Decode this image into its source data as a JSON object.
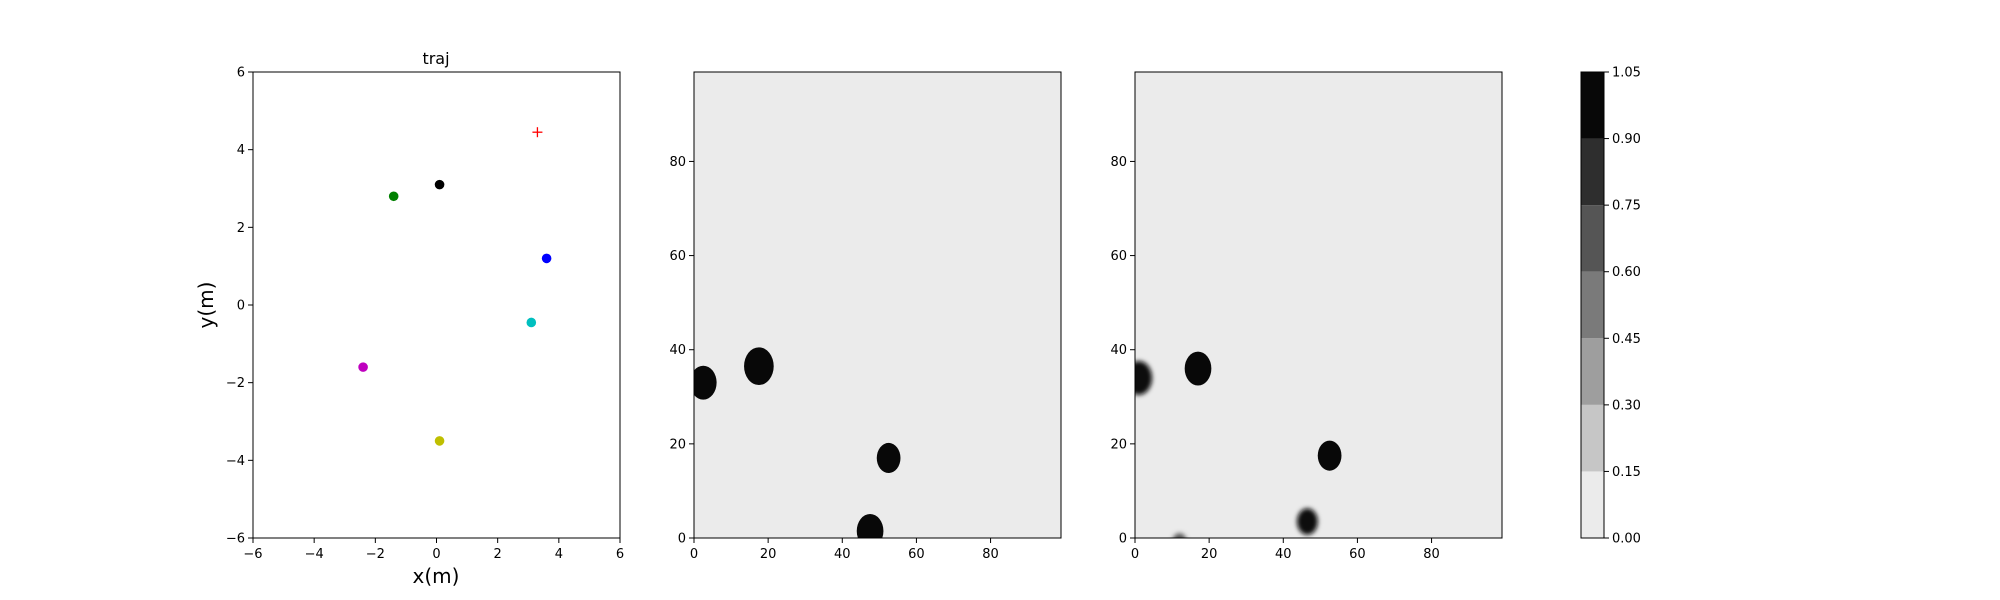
{
  "chart_data": [
    {
      "type": "scatter",
      "title": "traj",
      "xlabel": "x(m)",
      "ylabel": "y(m)",
      "xlim": [
        -6,
        6
      ],
      "ylim": [
        -6,
        6
      ],
      "xticks": [
        "−6",
        "−4",
        "−2",
        "0",
        "2",
        "4",
        "6"
      ],
      "yticks": [
        "−6",
        "−4",
        "−2",
        "0",
        "2",
        "4",
        "6"
      ],
      "grid": false,
      "points": [
        {
          "x": 0.1,
          "y": 3.1,
          "color": "#000000",
          "marker": "circle"
        },
        {
          "x": -1.4,
          "y": 2.8,
          "color": "#008000",
          "marker": "circle"
        },
        {
          "x": 3.6,
          "y": 1.2,
          "color": "#0000ff",
          "marker": "circle"
        },
        {
          "x": 3.1,
          "y": -0.45,
          "color": "#00bfbf",
          "marker": "circle"
        },
        {
          "x": -2.4,
          "y": -1.6,
          "color": "#bf00bf",
          "marker": "circle"
        },
        {
          "x": 0.1,
          "y": -3.5,
          "color": "#bfbf00",
          "marker": "circle"
        },
        {
          "x": 3.3,
          "y": 4.45,
          "color": "#ff0000",
          "marker": "plus"
        }
      ]
    },
    {
      "type": "heatmap",
      "title": "",
      "xlim": [
        0,
        99
      ],
      "ylim": [
        0,
        99
      ],
      "xticks": [
        "0",
        "20",
        "40",
        "60",
        "80"
      ],
      "yticks": [
        "0",
        "20",
        "40",
        "60",
        "80"
      ],
      "background_value": 0.05,
      "blobs": [
        {
          "x": 2.5,
          "y": 33,
          "r": 3.6,
          "value": 1.0,
          "soft": false
        },
        {
          "x": 17.5,
          "y": 36.5,
          "r": 4.0,
          "value": 1.0,
          "soft": false
        },
        {
          "x": 52.5,
          "y": 17,
          "r": 3.2,
          "value": 1.0,
          "soft": false
        },
        {
          "x": 47.5,
          "y": 1.5,
          "r": 3.6,
          "value": 1.0,
          "soft": false
        }
      ]
    },
    {
      "type": "heatmap",
      "title": "",
      "xlim": [
        0,
        99
      ],
      "ylim": [
        0,
        99
      ],
      "xticks": [
        "0",
        "20",
        "40",
        "60",
        "80"
      ],
      "yticks": [
        "0",
        "20",
        "40",
        "60",
        "80"
      ],
      "background_value": 0.05,
      "blobs": [
        {
          "x": 1.0,
          "y": 34,
          "r": 3.6,
          "value": 1.0,
          "soft": true
        },
        {
          "x": 17.0,
          "y": 36,
          "r": 3.6,
          "value": 1.0,
          "soft": false
        },
        {
          "x": 52.5,
          "y": 17.5,
          "r": 3.2,
          "value": 1.0,
          "soft": false
        },
        {
          "x": 46.5,
          "y": 3.5,
          "r": 2.8,
          "value": 1.0,
          "soft": true
        },
        {
          "x": 12.0,
          "y": -1.0,
          "r": 2.0,
          "value": 0.6,
          "soft": true
        }
      ]
    }
  ],
  "colorbar": {
    "levels": [
      0.0,
      0.15,
      0.3,
      0.45,
      0.6,
      0.75,
      0.9,
      1.05
    ],
    "tick_labels": [
      "0.00",
      "0.15",
      "0.30",
      "0.45",
      "0.60",
      "0.75",
      "0.90",
      "1.05"
    ],
    "colors": [
      "#ebebeb",
      "#c6c6c6",
      "#9e9e9e",
      "#7a7a7a",
      "#555555",
      "#2e2e2e",
      "#080808"
    ]
  }
}
